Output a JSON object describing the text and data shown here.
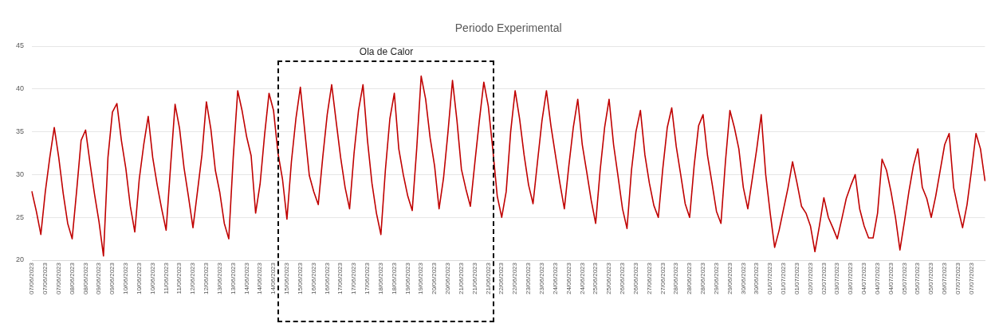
{
  "chart_data": {
    "type": "line",
    "title": "Periodo Experimental",
    "categories": [
      "07/06/2023",
      null,
      null,
      "07/06/2023",
      null,
      null,
      "07/06/2023",
      null,
      null,
      "08/06/2023",
      null,
      null,
      "08/06/2023",
      null,
      null,
      "09/06/2023",
      null,
      null,
      "09/06/2023",
      null,
      null,
      "10/06/2023",
      null,
      null,
      "10/06/2023",
      null,
      null,
      "10/06/2023",
      null,
      null,
      "11/06/2023",
      null,
      null,
      "11/06/2023",
      null,
      null,
      "12/06/2023",
      null,
      null,
      "12/06/2023",
      null,
      null,
      "13/06/2023",
      null,
      null,
      "13/06/2023",
      null,
      null,
      "14/06/2023",
      null,
      null,
      "14/06/2023",
      null,
      null,
      "14/06/2023",
      null,
      null,
      "15/06/2023",
      null,
      null,
      "15/06/2023",
      null,
      null,
      "16/06/2023",
      null,
      null,
      "16/06/2023",
      null,
      null,
      "17/06/2023",
      null,
      null,
      "17/06/2023",
      null,
      null,
      "17/06/2023",
      null,
      null,
      "18/06/2023",
      null,
      null,
      "18/06/2023",
      null,
      null,
      "19/06/2023",
      null,
      null,
      "19/06/2023",
      null,
      null,
      "20/06/2023",
      null,
      null,
      "20/06/2023",
      null,
      null,
      "21/06/2023",
      null,
      null,
      "21/06/2023",
      null,
      null,
      "21/06/2023",
      null,
      null,
      "22/06/2023",
      null,
      null,
      "22/06/2023",
      null,
      null,
      "23/06/2023",
      null,
      null,
      "23/06/2023",
      null,
      null,
      "24/06/2023",
      null,
      null,
      "24/06/2023",
      null,
      null,
      "24/06/2023",
      null,
      null,
      "25/06/2023",
      null,
      null,
      "25/06/2023",
      null,
      null,
      "26/06/2023",
      null,
      null,
      "26/06/2023",
      null,
      null,
      "27/06/2023",
      null,
      null,
      "27/06/2023",
      null,
      null,
      "28/06/2023",
      null,
      null,
      "28/06/2023",
      null,
      null,
      "28/06/2023",
      null,
      null,
      "29/06/2023",
      null,
      null,
      "29/06/2023",
      null,
      null,
      "30/06/2023",
      null,
      null,
      "30/06/2023",
      null,
      null,
      "01/07/2023",
      null,
      null,
      "01/07/2023",
      null,
      null,
      "01/07/2023",
      null,
      null,
      "02/07/2023",
      null,
      null,
      "02/07/2023",
      null,
      null,
      "03/07/2023",
      null,
      null,
      "03/07/2023",
      null,
      null,
      "04/07/2023",
      null,
      null,
      "04/07/2023",
      null,
      null,
      "04/07/2023",
      null,
      null,
      "05/07/2023",
      null,
      null,
      "05/07/2023",
      null,
      null,
      "05/07/2023",
      null,
      null,
      "06/07/2023",
      null,
      null,
      "07/07/2023",
      null,
      null,
      "07/07/2023",
      null,
      null,
      null
    ],
    "series": [
      {
        "color": "#c00000",
        "values": [
          28,
          25.7,
          23,
          28,
          32,
          35.5,
          32,
          27.8,
          24.3,
          22.5,
          28.1,
          34,
          35.2,
          31.3,
          27.7,
          24.5,
          20.5,
          32,
          37.3,
          38.3,
          34,
          30.7,
          26.3,
          23.3,
          29.5,
          33.5,
          36.8,
          32,
          28.8,
          26,
          23.5,
          31,
          38.2,
          35.4,
          30.8,
          27.4,
          23.8,
          28,
          32.3,
          38.5,
          35.3,
          30.5,
          27.9,
          24.3,
          22.5,
          32,
          39.8,
          37.4,
          34.4,
          32.2,
          25.5,
          28.9,
          34.6,
          39.5,
          37.5,
          32.5,
          29.5,
          24.8,
          31.5,
          36.5,
          40.2,
          35,
          29.9,
          28,
          26.5,
          32,
          37,
          40.5,
          36.2,
          32,
          28.5,
          26,
          32.5,
          37.5,
          40.5,
          34,
          29,
          25.5,
          23,
          30.5,
          36.5,
          39.5,
          33,
          30,
          27.5,
          25.8,
          33,
          41.5,
          38.8,
          34.3,
          31,
          26,
          29.6,
          35,
          41,
          36.3,
          30.6,
          28.3,
          26.3,
          31.4,
          36.3,
          40.8,
          38,
          33,
          27.5,
          25,
          28,
          35,
          39.8,
          36.5,
          32.3,
          28.8,
          26.6,
          31.5,
          36.3,
          39.8,
          35.7,
          32.3,
          29,
          26,
          31,
          35.5,
          38.8,
          33.5,
          30.3,
          27,
          24.3,
          30.5,
          35.5,
          38.8,
          33.5,
          29.8,
          26,
          23.7,
          30.5,
          35,
          37.5,
          32.3,
          29,
          26.4,
          25,
          30.7,
          35.5,
          37.8,
          33.3,
          30,
          26.6,
          25,
          31,
          35.7,
          37,
          32.2,
          29,
          25.7,
          24.3,
          31.5,
          37.5,
          35.5,
          33,
          28.5,
          26,
          29.5,
          33,
          37,
          30,
          25.5,
          21.5,
          23.5,
          26,
          28.5,
          31.5,
          29,
          26.3,
          25.5,
          24,
          21,
          24,
          27.3,
          25,
          23.8,
          22.5,
          24.8,
          27.2,
          28.7,
          30,
          26,
          24,
          22.6,
          22.6,
          25.5,
          31.8,
          30.5,
          28,
          25,
          21.2,
          24.5,
          28,
          31,
          33,
          28.5,
          27.2,
          25,
          27.5,
          30.5,
          33.5,
          34.8,
          28.5,
          26,
          23.8,
          26.5,
          30.5,
          34.8,
          33,
          29.3
        ]
      }
    ],
    "ylim": [
      20,
      45
    ],
    "yticks": [
      20,
      25,
      30,
      35,
      40,
      45
    ],
    "grid": "y",
    "marker": "none",
    "line_style": "solid",
    "annotations": [
      "Ola de Calor"
    ]
  }
}
